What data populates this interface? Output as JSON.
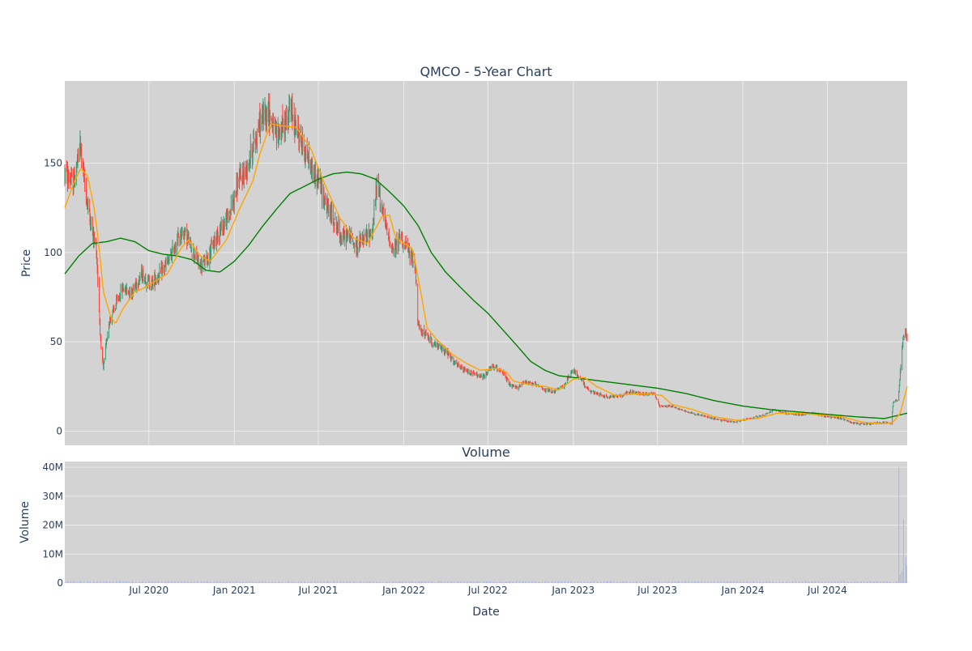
{
  "chart_data": [
    {
      "type": "candlestick",
      "title": "QMCO - 5-Year Chart",
      "ylabel": "Price",
      "ylim": [
        -8,
        196
      ],
      "yticks": [
        0,
        50,
        100,
        150
      ],
      "grid": true,
      "background": "#d3d3d3",
      "colors": {
        "increasing": "#3d9970",
        "decreasing": "#ff4136",
        "ma_short": "#ffa500",
        "ma_long": "#008000"
      },
      "price_waypoints": [
        [
          "2020-01-02",
          145
        ],
        [
          "2020-01-20",
          138
        ],
        [
          "2020-02-05",
          160
        ],
        [
          "2020-02-15",
          135
        ],
        [
          "2020-03-01",
          112
        ],
        [
          "2020-03-10",
          102
        ],
        [
          "2020-03-20",
          45
        ],
        [
          "2020-03-25",
          35
        ],
        [
          "2020-04-05",
          60
        ],
        [
          "2020-04-20",
          70
        ],
        [
          "2020-05-05",
          80
        ],
        [
          "2020-05-25",
          78
        ],
        [
          "2020-06-15",
          88
        ],
        [
          "2020-07-05",
          82
        ],
        [
          "2020-07-25",
          88
        ],
        [
          "2020-08-15",
          96
        ],
        [
          "2020-09-01",
          108
        ],
        [
          "2020-09-15",
          112
        ],
        [
          "2020-10-05",
          100
        ],
        [
          "2020-10-20",
          92
        ],
        [
          "2020-11-05",
          97
        ],
        [
          "2020-11-25",
          110
        ],
        [
          "2020-12-20",
          120
        ],
        [
          "2021-01-10",
          140
        ],
        [
          "2021-01-25",
          145
        ],
        [
          "2021-02-10",
          160
        ],
        [
          "2021-03-01",
          175
        ],
        [
          "2021-03-15",
          180
        ],
        [
          "2021-04-01",
          165
        ],
        [
          "2021-04-20",
          172
        ],
        [
          "2021-05-01",
          180
        ],
        [
          "2021-05-15",
          170
        ],
        [
          "2021-06-05",
          155
        ],
        [
          "2021-06-20",
          145
        ],
        [
          "2021-07-05",
          138
        ],
        [
          "2021-07-20",
          125
        ],
        [
          "2021-08-05",
          118
        ],
        [
          "2021-08-20",
          108
        ],
        [
          "2021-09-05",
          110
        ],
        [
          "2021-09-20",
          103
        ],
        [
          "2021-10-10",
          108
        ],
        [
          "2021-10-25",
          112
        ],
        [
          "2021-11-05",
          140
        ],
        [
          "2021-11-15",
          125
        ],
        [
          "2021-11-25",
          112
        ],
        [
          "2021-12-10",
          100
        ],
        [
          "2021-12-25",
          110
        ],
        [
          "2022-01-15",
          98
        ],
        [
          "2022-01-25",
          95
        ],
        [
          "2022-02-01",
          58
        ],
        [
          "2022-02-20",
          53
        ],
        [
          "2022-03-10",
          48
        ],
        [
          "2022-04-01",
          45
        ],
        [
          "2022-04-20",
          38
        ],
        [
          "2022-05-10",
          34
        ],
        [
          "2022-06-01",
          32
        ],
        [
          "2022-06-20",
          30
        ],
        [
          "2022-07-10",
          36
        ],
        [
          "2022-08-01",
          34
        ],
        [
          "2022-08-15",
          26
        ],
        [
          "2022-09-01",
          24
        ],
        [
          "2022-09-20",
          28
        ],
        [
          "2022-10-10",
          26
        ],
        [
          "2022-11-01",
          23
        ],
        [
          "2022-11-20",
          22
        ],
        [
          "2022-12-10",
          25
        ],
        [
          "2023-01-01",
          34
        ],
        [
          "2023-01-20",
          28
        ],
        [
          "2023-02-05",
          22
        ],
        [
          "2023-02-20",
          21
        ],
        [
          "2023-03-15",
          19
        ],
        [
          "2023-04-15",
          20
        ],
        [
          "2023-05-01",
          22
        ],
        [
          "2023-06-01",
          21
        ],
        [
          "2023-06-25",
          21
        ],
        [
          "2023-07-05",
          14
        ],
        [
          "2023-08-01",
          14
        ],
        [
          "2023-08-20",
          12
        ],
        [
          "2023-09-15",
          10
        ],
        [
          "2023-10-15",
          8
        ],
        [
          "2023-11-15",
          6
        ],
        [
          "2023-12-15",
          5
        ],
        [
          "2024-01-15",
          7
        ],
        [
          "2024-02-15",
          9
        ],
        [
          "2024-03-10",
          12
        ],
        [
          "2024-04-01",
          10
        ],
        [
          "2024-05-01",
          9
        ],
        [
          "2024-06-01",
          10
        ],
        [
          "2024-07-01",
          8
        ],
        [
          "2024-08-01",
          7
        ],
        [
          "2024-09-01",
          4
        ],
        [
          "2024-10-01",
          4
        ],
        [
          "2024-11-01",
          5
        ],
        [
          "2024-11-15",
          4
        ],
        [
          "2024-11-20",
          16
        ],
        [
          "2024-12-01",
          18
        ],
        [
          "2024-12-08",
          45
        ],
        [
          "2024-12-15",
          58
        ],
        [
          "2024-12-20",
          52
        ]
      ],
      "ma_short_waypoints": [
        [
          "2020-01-02",
          125
        ],
        [
          "2020-01-20",
          138
        ],
        [
          "2020-02-05",
          147
        ],
        [
          "2020-02-20",
          143
        ],
        [
          "2020-03-05",
          125
        ],
        [
          "2020-03-15",
          105
        ],
        [
          "2020-03-25",
          78
        ],
        [
          "2020-04-10",
          64
        ],
        [
          "2020-04-20",
          60
        ],
        [
          "2020-05-05",
          68
        ],
        [
          "2020-06-01",
          78
        ],
        [
          "2020-06-20",
          80
        ],
        [
          "2020-07-15",
          84
        ],
        [
          "2020-08-10",
          88
        ],
        [
          "2020-09-10",
          103
        ],
        [
          "2020-09-25",
          107
        ],
        [
          "2020-10-20",
          98
        ],
        [
          "2020-11-10",
          95
        ],
        [
          "2020-12-15",
          107
        ],
        [
          "2021-01-10",
          123
        ],
        [
          "2021-02-10",
          140
        ],
        [
          "2021-02-25",
          155
        ],
        [
          "2021-03-20",
          172
        ],
        [
          "2021-04-10",
          171
        ],
        [
          "2021-05-15",
          170
        ],
        [
          "2021-06-15",
          158
        ],
        [
          "2021-07-15",
          138
        ],
        [
          "2021-08-15",
          120
        ],
        [
          "2021-09-15",
          108
        ],
        [
          "2021-10-15",
          105
        ],
        [
          "2021-11-15",
          120
        ],
        [
          "2021-12-01",
          121
        ],
        [
          "2021-12-15",
          108
        ],
        [
          "2022-01-20",
          102
        ],
        [
          "2022-02-05",
          80
        ],
        [
          "2022-02-20",
          58
        ],
        [
          "2022-03-10",
          52
        ],
        [
          "2022-04-15",
          43
        ],
        [
          "2022-05-15",
          38
        ],
        [
          "2022-06-15",
          34
        ],
        [
          "2022-07-20",
          35
        ],
        [
          "2022-08-10",
          33
        ],
        [
          "2022-08-25",
          28
        ],
        [
          "2022-09-25",
          26
        ],
        [
          "2022-11-01",
          25
        ],
        [
          "2022-12-01",
          23
        ],
        [
          "2023-01-01",
          29
        ],
        [
          "2023-01-25",
          30
        ],
        [
          "2023-02-20",
          25
        ],
        [
          "2023-04-01",
          20
        ],
        [
          "2023-06-01",
          21
        ],
        [
          "2023-07-10",
          20
        ],
        [
          "2023-08-01",
          15
        ],
        [
          "2023-09-15",
          12
        ],
        [
          "2023-11-01",
          8
        ],
        [
          "2023-12-20",
          6
        ],
        [
          "2024-02-01",
          7
        ],
        [
          "2024-03-15",
          10
        ],
        [
          "2024-05-01",
          10
        ],
        [
          "2024-06-15",
          9
        ],
        [
          "2024-08-01",
          8
        ],
        [
          "2024-09-15",
          5
        ],
        [
          "2024-11-01",
          4
        ],
        [
          "2024-11-20",
          5
        ],
        [
          "2024-12-05",
          10
        ],
        [
          "2024-12-20",
          25
        ]
      ],
      "ma_long_waypoints": [
        [
          "2020-01-02",
          88
        ],
        [
          "2020-02-01",
          98
        ],
        [
          "2020-03-01",
          105
        ],
        [
          "2020-04-01",
          106
        ],
        [
          "2020-05-01",
          108
        ],
        [
          "2020-06-01",
          106
        ],
        [
          "2020-07-01",
          101
        ],
        [
          "2020-08-01",
          99
        ],
        [
          "2020-09-01",
          98
        ],
        [
          "2020-10-01",
          96
        ],
        [
          "2020-11-01",
          90
        ],
        [
          "2020-12-01",
          89
        ],
        [
          "2021-01-01",
          95
        ],
        [
          "2021-02-01",
          104
        ],
        [
          "2021-03-01",
          114
        ],
        [
          "2021-04-01",
          124
        ],
        [
          "2021-05-01",
          133
        ],
        [
          "2021-06-01",
          137
        ],
        [
          "2021-07-01",
          141
        ],
        [
          "2021-08-01",
          144
        ],
        [
          "2021-09-01",
          145
        ],
        [
          "2021-10-01",
          144
        ],
        [
          "2021-11-01",
          141
        ],
        [
          "2021-12-01",
          134
        ],
        [
          "2022-01-01",
          126
        ],
        [
          "2022-02-01",
          115
        ],
        [
          "2022-03-01",
          100
        ],
        [
          "2022-04-01",
          89
        ],
        [
          "2022-05-01",
          81
        ],
        [
          "2022-06-01",
          73
        ],
        [
          "2022-07-01",
          66
        ],
        [
          "2022-08-01",
          57
        ],
        [
          "2022-09-01",
          48
        ],
        [
          "2022-10-01",
          39
        ],
        [
          "2022-11-01",
          34
        ],
        [
          "2022-12-01",
          31
        ],
        [
          "2023-01-01",
          30
        ],
        [
          "2023-03-01",
          28
        ],
        [
          "2023-05-01",
          26
        ],
        [
          "2023-07-01",
          24
        ],
        [
          "2023-09-01",
          21
        ],
        [
          "2023-11-01",
          17
        ],
        [
          "2024-01-01",
          14
        ],
        [
          "2024-03-01",
          12
        ],
        [
          "2024-06-01",
          10
        ],
        [
          "2024-09-01",
          8
        ],
        [
          "2024-11-01",
          7
        ],
        [
          "2024-12-20",
          10
        ]
      ]
    },
    {
      "type": "bar",
      "title": "Volume",
      "xlabel": "Date",
      "ylabel": "Volume",
      "ylim": [
        0,
        42000000
      ],
      "yticks": [
        0,
        10000000,
        20000000,
        30000000,
        40000000
      ],
      "ytick_labels": [
        "0",
        "10M",
        "20M",
        "30M",
        "40M"
      ],
      "xticks": [
        "2020-07-01",
        "2021-01-01",
        "2021-07-01",
        "2022-01-01",
        "2022-07-01",
        "2023-01-01",
        "2023-07-01",
        "2024-01-01",
        "2024-07-01"
      ],
      "xtick_labels": [
        "Jul 2020",
        "Jan 2021",
        "Jul 2021",
        "Jan 2022",
        "Jul 2022",
        "Jan 2023",
        "Jul 2023",
        "Jan 2024",
        "Jul 2024"
      ],
      "xlim": [
        "2020-01-02",
        "2024-12-20"
      ],
      "bar_color": "#b0b8e8",
      "spikes": [
        [
          "2024-12-02",
          40000000
        ],
        [
          "2024-12-05",
          3000000
        ],
        [
          "2024-12-09",
          4000000
        ],
        [
          "2024-12-12",
          22000000
        ],
        [
          "2024-12-17",
          9000000
        ],
        [
          "2024-12-19",
          6000000
        ]
      ]
    }
  ]
}
